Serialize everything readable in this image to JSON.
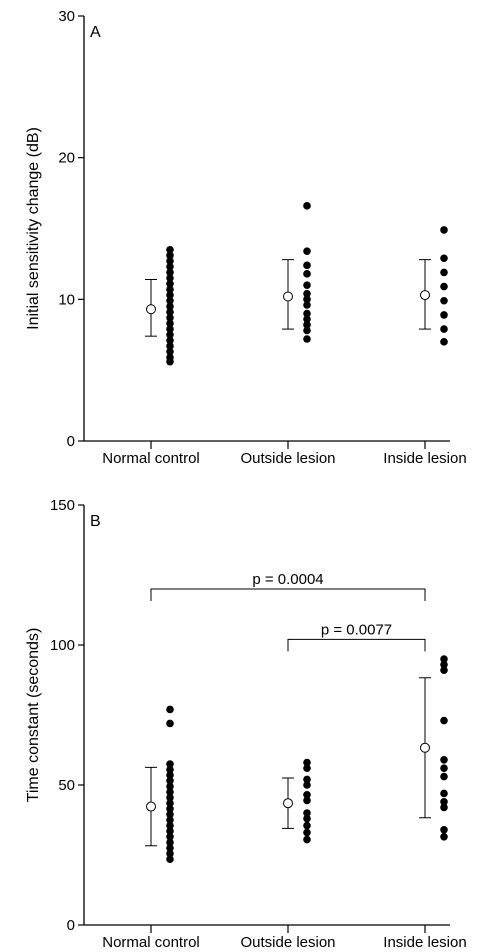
{
  "chart_data": [
    {
      "type": "scatter",
      "panel_label": "A",
      "ylabel": "Initial sensitivity change (dB)",
      "ylim": [
        0,
        30
      ],
      "yticks": [
        0,
        10,
        20,
        30
      ],
      "categories": [
        "Normal control",
        "Outside lesion",
        "Inside lesion"
      ],
      "summary": [
        {
          "mean": 9.3,
          "low": 7.4,
          "high": 11.4
        },
        {
          "mean": 10.2,
          "low": 7.9,
          "high": 12.8
        },
        {
          "mean": 10.3,
          "low": 7.9,
          "high": 12.8
        }
      ],
      "points": [
        [
          13.5,
          13.1,
          12.7,
          12.3,
          11.9,
          11.5,
          11.1,
          10.7,
          10.3,
          9.9,
          9.5,
          9.1,
          8.7,
          8.3,
          7.9,
          7.5,
          7.1,
          6.7,
          6.3,
          5.9,
          5.6
        ],
        [
          16.6,
          13.4,
          12.4,
          11.8,
          11.0,
          10.4,
          10.0,
          9.6,
          9.0,
          8.6,
          8.2,
          7.8,
          7.2
        ],
        [
          14.9,
          12.9,
          11.9,
          10.9,
          9.9,
          8.9,
          7.9,
          7.0
        ]
      ],
      "grid": false
    },
    {
      "type": "scatter",
      "panel_label": "B",
      "ylabel": "Time constant (seconds)",
      "ylim": [
        0,
        150
      ],
      "yticks": [
        0,
        50,
        100,
        150
      ],
      "categories": [
        "Normal control",
        "Outside lesion",
        "Inside lesion"
      ],
      "summary": [
        {
          "mean": 42.3,
          "low": 28.3,
          "high": 56.3
        },
        {
          "mean": 43.5,
          "low": 34.5,
          "high": 52.5
        },
        {
          "mean": 63.3,
          "low": 38.3,
          "high": 88.3
        }
      ],
      "points": [
        [
          77.0,
          72.0,
          57.5,
          55.5,
          53.5,
          51.5,
          49.5,
          47.5,
          45.5,
          43.5,
          41.5,
          39.5,
          37.5,
          35.5,
          33.5,
          31.5,
          29.5,
          27.5,
          25.5,
          23.5
        ],
        [
          58.0,
          56.0,
          52.0,
          50.0,
          46.5,
          44.5,
          40.0,
          38.0,
          35.5,
          33.0,
          30.5
        ],
        [
          95.0,
          93.0,
          91.0,
          73.0,
          59.0,
          56.0,
          53.0,
          47.0,
          44.0,
          42.0,
          34.0,
          31.5
        ]
      ],
      "annotations": [
        {
          "text": "p = 0.0004",
          "from": "Normal control",
          "to": "Inside lesion",
          "y": 120
        },
        {
          "text": "p = 0.0077",
          "from": "Outside lesion",
          "to": "Inside lesion",
          "y": 102
        }
      ],
      "grid": false
    }
  ]
}
